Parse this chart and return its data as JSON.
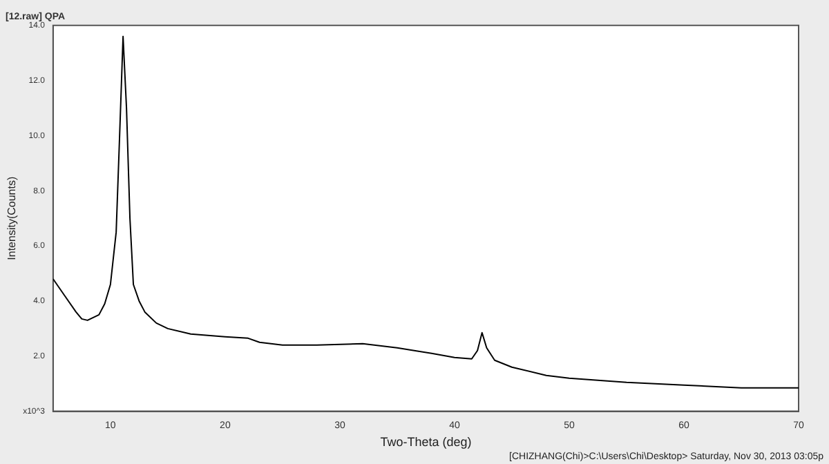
{
  "chart_data": {
    "type": "line",
    "title": "[12.raw] QPA",
    "xlabel": "Two-Theta (deg)",
    "ylabel": "Intensity(Counts)",
    "annotations": [
      "[CHIZHANG(Chi)>C:\\Users\\Chi\\Desktop> Saturday, Nov 30, 2013 03:05p"
    ],
    "series": [
      {
        "color": "#000000",
        "x": [
          5,
          6,
          7,
          7.5,
          8,
          9,
          9.5,
          10,
          10.5,
          10.8,
          11.1,
          11.4,
          11.7,
          12,
          12.5,
          13,
          14,
          15,
          17,
          20,
          22,
          23,
          25,
          28,
          32,
          35,
          38,
          40,
          41.5,
          42,
          42.4,
          42.8,
          43.5,
          45,
          48,
          50,
          55,
          60,
          65,
          70
        ],
        "values": [
          4.8,
          4.2,
          3.6,
          3.35,
          3.3,
          3.5,
          3.9,
          4.6,
          6.5,
          10,
          13.6,
          11,
          7,
          4.6,
          4.0,
          3.6,
          3.2,
          3.0,
          2.8,
          2.7,
          2.65,
          2.5,
          2.4,
          2.4,
          2.45,
          2.3,
          2.1,
          1.95,
          1.9,
          2.2,
          2.85,
          2.3,
          1.85,
          1.6,
          1.3,
          1.2,
          1.05,
          0.95,
          0.85,
          0.85
        ]
      }
    ],
    "xlim": [
      5,
      70
    ],
    "xticks": [
      10,
      20,
      30,
      40,
      50,
      60,
      70
    ],
    "ylim": [
      0,
      14
    ],
    "yticks": [
      {
        "value": 0,
        "label": "x10^3"
      },
      {
        "value": 2,
        "label": "2.0"
      },
      {
        "value": 4,
        "label": "4.0"
      },
      {
        "value": 6,
        "label": "6.0"
      },
      {
        "value": 8,
        "label": "8.0"
      },
      {
        "value": 10,
        "label": "10.0"
      },
      {
        "value": 12,
        "label": "12.0"
      },
      {
        "value": 14,
        "label": "14.0"
      }
    ],
    "grid": false,
    "legend": false,
    "marker": "none",
    "line_style": "solid"
  }
}
